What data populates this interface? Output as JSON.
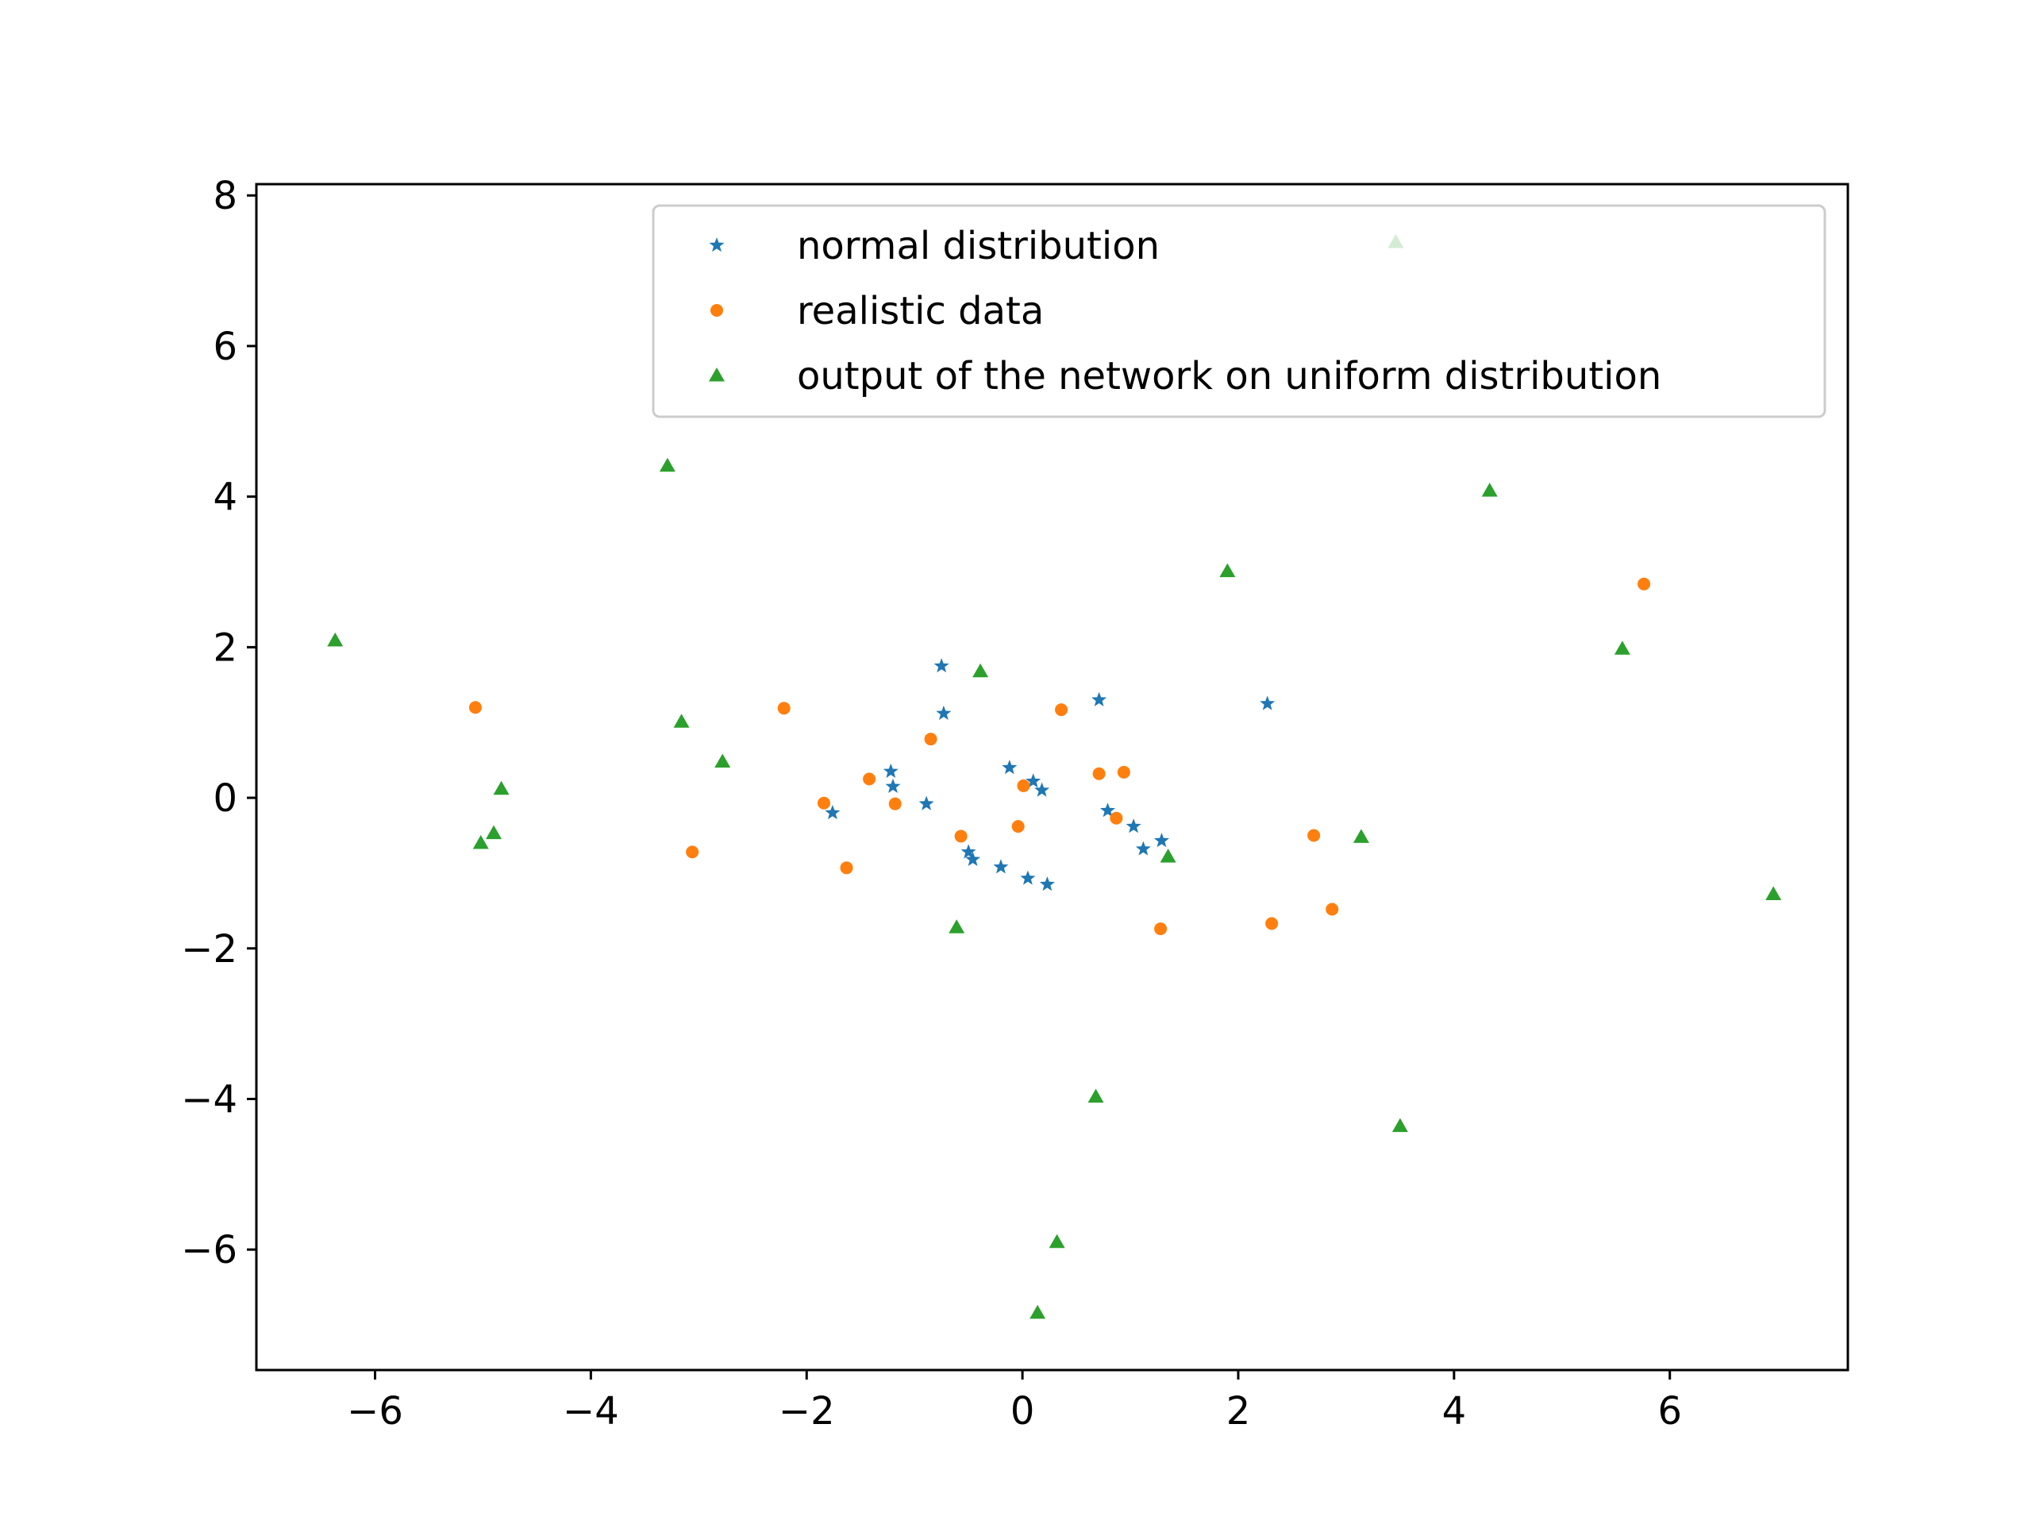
{
  "chart_data": {
    "type": "scatter",
    "title": "",
    "xlabel": "",
    "ylabel": "",
    "xlim": [
      -7.1,
      7.65
    ],
    "ylim": [
      -7.6,
      8.15
    ],
    "xticks": [
      -6,
      -4,
      -2,
      0,
      2,
      4,
      6
    ],
    "yticks": [
      -6,
      -4,
      -2,
      0,
      2,
      4,
      6,
      8
    ],
    "xtick_labels": [
      "−6",
      "−4",
      "−2",
      "0",
      "2",
      "4",
      "6"
    ],
    "ytick_labels": [
      "−6",
      "−4",
      "−2",
      "0",
      "2",
      "4",
      "6",
      "8"
    ],
    "grid": false,
    "legend_position": "upper-right",
    "series": [
      {
        "name": "normal distribution",
        "marker": "star",
        "color": "#1f77b4",
        "points": [
          [
            -0.75,
            1.75
          ],
          [
            -0.73,
            1.12
          ],
          [
            0.71,
            1.3
          ],
          [
            2.27,
            1.25
          ],
          [
            -1.22,
            0.35
          ],
          [
            -1.2,
            0.15
          ],
          [
            -0.12,
            0.4
          ],
          [
            0.1,
            0.22
          ],
          [
            0.18,
            0.1
          ],
          [
            -0.89,
            -0.08
          ],
          [
            -1.76,
            -0.2
          ],
          [
            0.79,
            -0.17
          ],
          [
            1.03,
            -0.38
          ],
          [
            1.29,
            -0.57
          ],
          [
            1.12,
            -0.68
          ],
          [
            -0.5,
            -0.72
          ],
          [
            -0.46,
            -0.82
          ],
          [
            -0.2,
            -0.92
          ],
          [
            0.05,
            -1.07
          ],
          [
            0.23,
            -1.15
          ]
        ]
      },
      {
        "name": "realistic data",
        "marker": "circle",
        "color": "#ff7f0e",
        "points": [
          [
            -5.07,
            1.2
          ],
          [
            -2.21,
            1.19
          ],
          [
            0.36,
            1.17
          ],
          [
            -0.85,
            0.78
          ],
          [
            -1.42,
            0.25
          ],
          [
            0.71,
            0.32
          ],
          [
            0.94,
            0.34
          ],
          [
            0.01,
            0.16
          ],
          [
            -1.84,
            -0.07
          ],
          [
            -1.18,
            -0.08
          ],
          [
            0.87,
            -0.27
          ],
          [
            -0.04,
            -0.38
          ],
          [
            -0.57,
            -0.51
          ],
          [
            2.7,
            -0.5
          ],
          [
            -3.06,
            -0.72
          ],
          [
            -1.63,
            -0.93
          ],
          [
            2.87,
            -1.48
          ],
          [
            2.31,
            -1.67
          ],
          [
            1.28,
            -1.74
          ],
          [
            5.76,
            2.84
          ]
        ]
      },
      {
        "name": "output of the network on uniform distribution",
        "marker": "triangle",
        "color": "#2ca02c",
        "points": [
          [
            3.46,
            7.38
          ],
          [
            -3.29,
            4.41
          ],
          [
            4.33,
            4.08
          ],
          [
            1.9,
            3.01
          ],
          [
            -6.37,
            2.09
          ],
          [
            5.56,
            1.98
          ],
          [
            -0.39,
            1.68
          ],
          [
            -3.16,
            1.01
          ],
          [
            -2.78,
            0.48
          ],
          [
            -4.83,
            0.12
          ],
          [
            -4.9,
            -0.47
          ],
          [
            -5.02,
            -0.6
          ],
          [
            3.14,
            -0.52
          ],
          [
            1.35,
            -0.78
          ],
          [
            6.96,
            -1.28
          ],
          [
            -0.61,
            -1.72
          ],
          [
            0.68,
            -3.97
          ],
          [
            3.5,
            -4.36
          ],
          [
            0.32,
            -5.9
          ],
          [
            0.14,
            -6.84
          ]
        ]
      }
    ]
  }
}
